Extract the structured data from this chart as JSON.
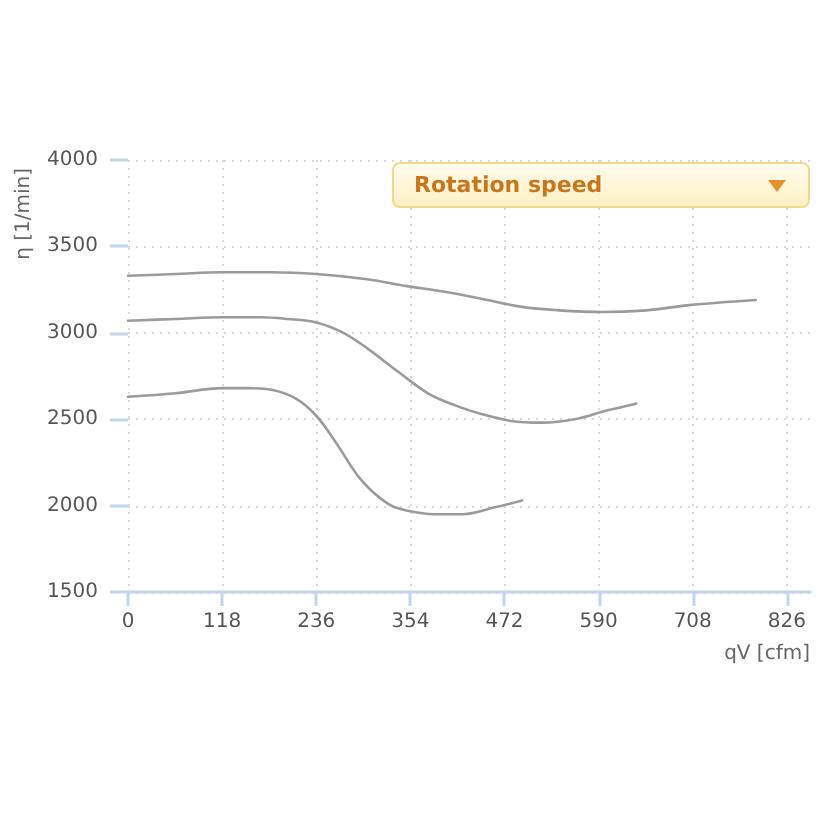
{
  "chart_data": {
    "type": "line",
    "xlabel": "qV [cfm]",
    "ylabel": "η [1/min]",
    "annotations": [
      "Rotation speed"
    ],
    "xlim": [
      0,
      855
    ],
    "xticks": [
      0,
      118,
      236,
      354,
      472,
      590,
      708,
      826
    ],
    "ylim": [
      1500,
      4000
    ],
    "yticks": [
      1500,
      2000,
      2500,
      3000,
      3500,
      4000
    ],
    "grid": true,
    "marker": "none",
    "series": [
      {
        "color": "#9b9b9b",
        "x": [
          0,
          60,
          118,
          180,
          236,
          300,
          350,
          393,
          440,
          494,
          540,
          594,
          650,
          703,
          787
        ],
        "values": [
          3330,
          3340,
          3350,
          3350,
          3340,
          3310,
          3270,
          3240,
          3200,
          3150,
          3130,
          3120,
          3130,
          3160,
          3190
        ]
      },
      {
        "color": "#9b9b9b",
        "x": [
          0,
          60,
          118,
          166,
          200,
          236,
          270,
          300,
          340,
          376,
          410,
          443,
          480,
          519,
          560,
          600,
          637
        ],
        "values": [
          3070,
          3080,
          3090,
          3090,
          3080,
          3060,
          3000,
          2910,
          2770,
          2650,
          2580,
          2530,
          2490,
          2480,
          2500,
          2550,
          2590
        ]
      },
      {
        "color": "#9b9b9b",
        "x": [
          0,
          60,
          118,
          149,
          180,
          210,
          236,
          260,
          292,
          326,
          351,
          384,
          420,
          460,
          494
        ],
        "values": [
          2630,
          2650,
          2680,
          2680,
          2670,
          2620,
          2520,
          2370,
          2150,
          2010,
          1970,
          1950,
          1950,
          1990,
          2030
        ]
      }
    ]
  }
}
